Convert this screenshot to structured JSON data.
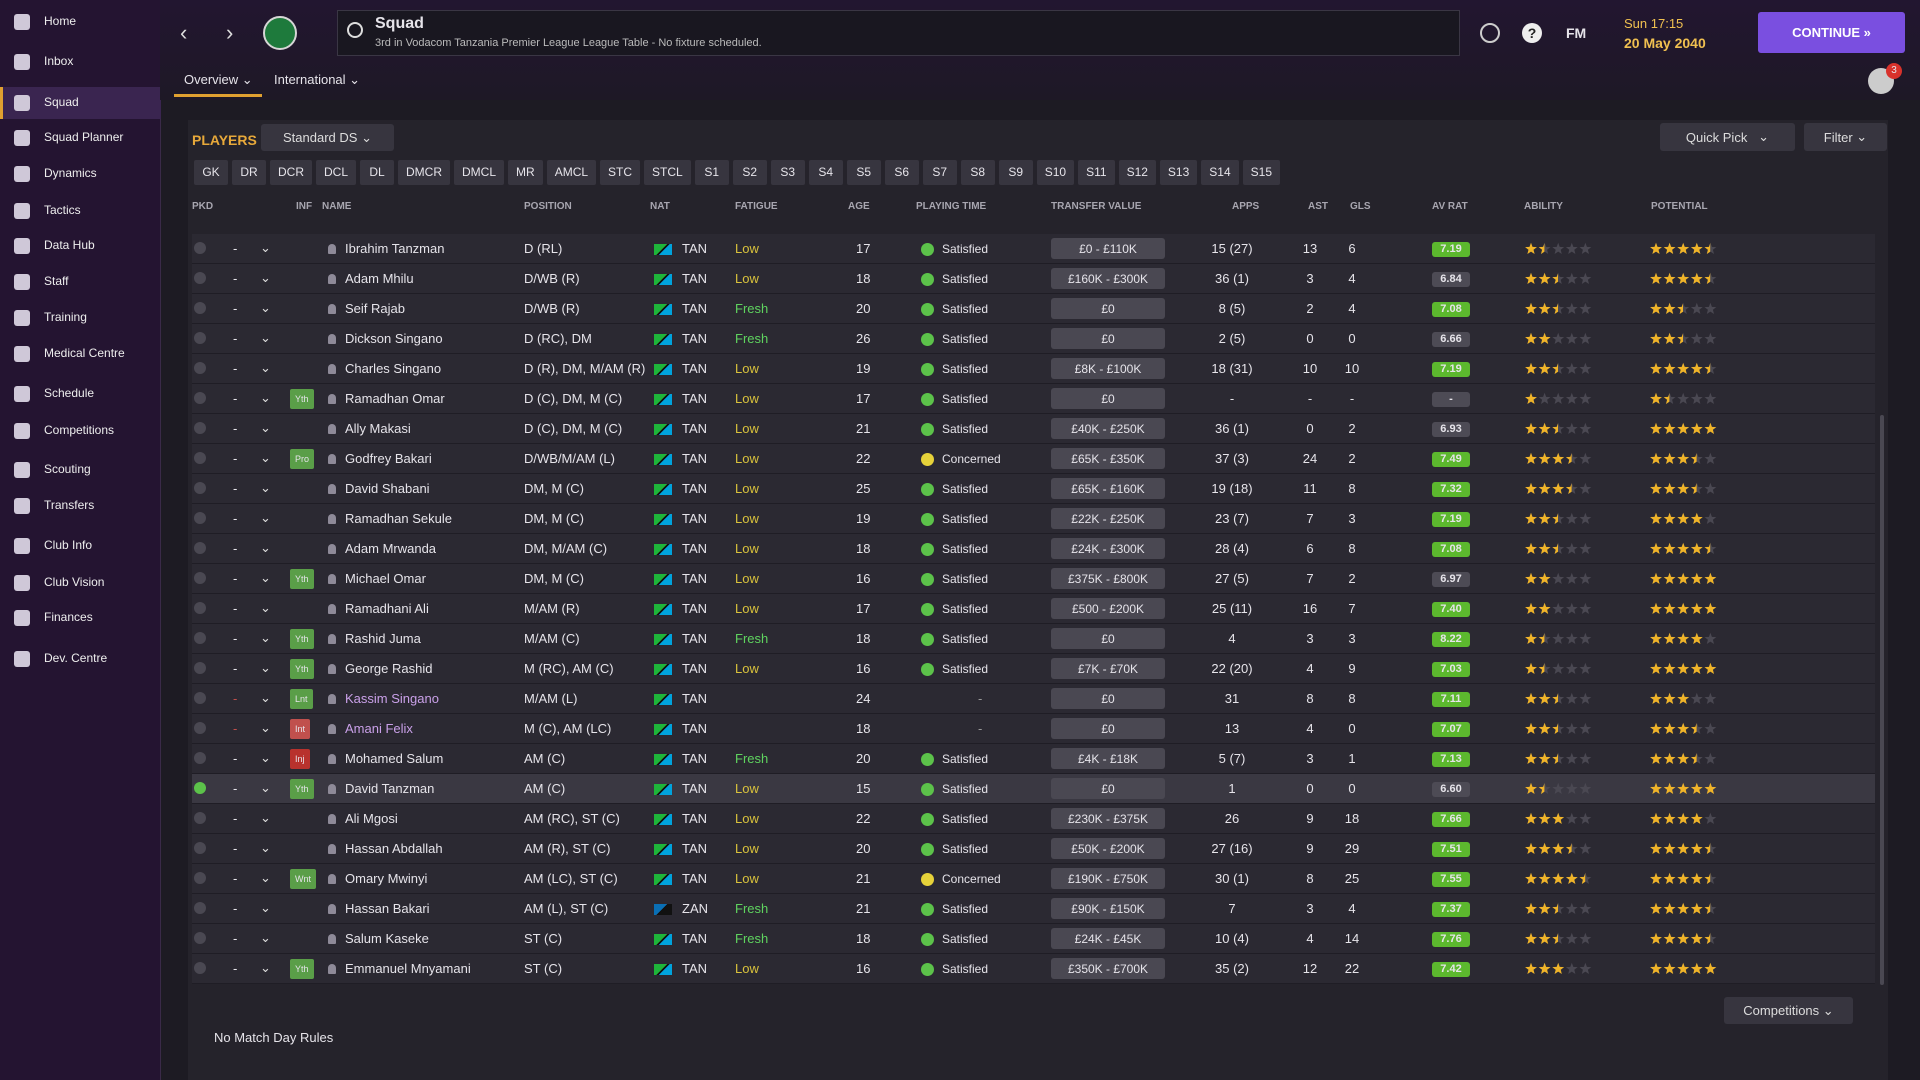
{
  "sidebar": {
    "items": [
      "Home",
      "Inbox",
      "Squad",
      "Squad Planner",
      "Dynamics",
      "Tactics",
      "Data Hub",
      "Staff",
      "Training",
      "Medical Centre",
      "Schedule",
      "Competitions",
      "Scouting",
      "Transfers",
      "Club Info",
      "Club Vision",
      "Finances",
      "Dev. Centre"
    ],
    "active": "Squad"
  },
  "header": {
    "title": "Squad",
    "subtitle": "3rd in Vodacom Tanzania Premier League League Table - No fixture scheduled.",
    "brand": "FM",
    "day_time": "Sun 17:15",
    "date": "20 May 2040",
    "continue": "CONTINUE",
    "notifications": "3"
  },
  "tabs": [
    "Overview",
    "International"
  ],
  "toolbar": {
    "title": "PLAYERS",
    "view": "Standard DS",
    "quick_pick": "Quick Pick",
    "filter": "Filter"
  },
  "position_filters": [
    "GK",
    "DR",
    "DCR",
    "DCL",
    "DL",
    "DMCR",
    "DMCL",
    "MR",
    "AMCL",
    "STC",
    "STCL",
    "S1",
    "S2",
    "S3",
    "S4",
    "S5",
    "S6",
    "S7",
    "S8",
    "S9",
    "S10",
    "S11",
    "S12",
    "S13",
    "S14",
    "S15"
  ],
  "table": {
    "columns": [
      "PKD",
      "INF",
      "NAME",
      "POSITION",
      "NAT",
      "FATIGUE",
      "AGE",
      "PLAYING TIME",
      "TRANSFER VALUE",
      "APPS",
      "AST",
      "GLS",
      "AV RAT",
      "ABILITY",
      "POTENTIAL"
    ],
    "fatigue_colors": {
      "Low": "#d9c23c",
      "Fresh": "#5fd35f"
    },
    "playing_time_colors": {
      "Satisfied": "#5cc24a",
      "Concerned": "#e6d23a"
    },
    "badge_colors": {
      "Yth": "#5a9e48",
      "Pro": "#5a9e48",
      "Lnt": "#5a9e48",
      "Wnt": "#5a9e48",
      "Int": "#c0504d",
      "Inj": "#b8322d"
    },
    "flags": {
      "TAN": [
        "#1eb53a",
        "#00a3dd"
      ],
      "ZAN": [
        "#0a6fb5",
        "#111111"
      ]
    },
    "highlight_row": 18,
    "rows": [
      {
        "pkd": "-",
        "inf": null,
        "name": "Ibrahim Tanzman",
        "position": "D (RL)",
        "nat": "TAN",
        "fatigue": "Low",
        "age": 17,
        "playing_time": "Satisfied",
        "transfer_value": "£0 - £110K",
        "apps": "15 (27)",
        "ast": "13",
        "gls": "6",
        "av_rat": "7.19",
        "ability": 1.5,
        "potential": 4.5
      },
      {
        "pkd": "-",
        "inf": null,
        "name": "Adam Mhilu",
        "position": "D/WB (R)",
        "nat": "TAN",
        "fatigue": "Low",
        "age": 18,
        "playing_time": "Satisfied",
        "transfer_value": "£160K - £300K",
        "apps": "36 (1)",
        "ast": "3",
        "gls": "4",
        "av_rat": "6.84",
        "ability": 2.5,
        "potential": 4.5
      },
      {
        "pkd": "-",
        "inf": null,
        "name": "Seif Rajab",
        "position": "D/WB (R)",
        "nat": "TAN",
        "fatigue": "Fresh",
        "age": 20,
        "playing_time": "Satisfied",
        "transfer_value": "£0",
        "apps": "8 (5)",
        "ast": "2",
        "gls": "4",
        "av_rat": "7.08",
        "ability": 2.5,
        "potential": 2.5
      },
      {
        "pkd": "-",
        "inf": null,
        "name": "Dickson Singano",
        "position": "D (RC), DM",
        "nat": "TAN",
        "fatigue": "Fresh",
        "age": 26,
        "playing_time": "Satisfied",
        "transfer_value": "£0",
        "apps": "2 (5)",
        "ast": "0",
        "gls": "0",
        "av_rat": "6.66",
        "ability": 2,
        "potential": 2.5
      },
      {
        "pkd": "-",
        "inf": null,
        "name": "Charles Singano",
        "position": "D (R), DM, M/AM (R)",
        "nat": "TAN",
        "fatigue": "Low",
        "age": 19,
        "playing_time": "Satisfied",
        "transfer_value": "£8K - £100K",
        "apps": "18 (31)",
        "ast": "10",
        "gls": "10",
        "av_rat": "7.19",
        "ability": 2.5,
        "potential": 4.5
      },
      {
        "pkd": "-",
        "inf": "Yth",
        "name": "Ramadhan Omar",
        "position": "D (C), DM, M (C)",
        "nat": "TAN",
        "fatigue": "Low",
        "age": 17,
        "playing_time": "Satisfied",
        "transfer_value": "£0",
        "apps": "-",
        "ast": "-",
        "gls": "-",
        "av_rat": "-",
        "ability": 1,
        "potential": 1.5
      },
      {
        "pkd": "-",
        "inf": null,
        "name": "Ally Makasi",
        "position": "D (C), DM, M (C)",
        "nat": "TAN",
        "fatigue": "Low",
        "age": 21,
        "playing_time": "Satisfied",
        "transfer_value": "£40K - £250K",
        "apps": "36 (1)",
        "ast": "0",
        "gls": "2",
        "av_rat": "6.93",
        "ability": 2.5,
        "potential": 5
      },
      {
        "pkd": "-",
        "inf": "Pro",
        "name": "Godfrey Bakari",
        "position": "D/WB/M/AM (L)",
        "nat": "TAN",
        "fatigue": "Low",
        "age": 22,
        "playing_time": "Concerned",
        "transfer_value": "£65K - £350K",
        "apps": "37 (3)",
        "ast": "24",
        "gls": "2",
        "av_rat": "7.49",
        "ability": 3.5,
        "potential": 3.5
      },
      {
        "pkd": "-",
        "inf": null,
        "name": "David Shabani",
        "position": "DM, M (C)",
        "nat": "TAN",
        "fatigue": "Low",
        "age": 25,
        "playing_time": "Satisfied",
        "transfer_value": "£65K - £160K",
        "apps": "19 (18)",
        "ast": "11",
        "gls": "8",
        "av_rat": "7.32",
        "ability": 3.5,
        "potential": 3.5
      },
      {
        "pkd": "-",
        "inf": null,
        "name": "Ramadhan Sekule",
        "position": "DM, M (C)",
        "nat": "TAN",
        "fatigue": "Low",
        "age": 19,
        "playing_time": "Satisfied",
        "transfer_value": "£22K - £250K",
        "apps": "23 (7)",
        "ast": "7",
        "gls": "3",
        "av_rat": "7.19",
        "ability": 2.5,
        "potential": 4
      },
      {
        "pkd": "-",
        "inf": null,
        "name": "Adam Mrwanda",
        "position": "DM, M/AM (C)",
        "nat": "TAN",
        "fatigue": "Low",
        "age": 18,
        "playing_time": "Satisfied",
        "transfer_value": "£24K - £300K",
        "apps": "28 (4)",
        "ast": "6",
        "gls": "8",
        "av_rat": "7.08",
        "ability": 2.5,
        "potential": 4.5
      },
      {
        "pkd": "-",
        "inf": "Yth",
        "name": "Michael Omar",
        "position": "DM, M (C)",
        "nat": "TAN",
        "fatigue": "Low",
        "age": 16,
        "playing_time": "Satisfied",
        "transfer_value": "£375K - £800K",
        "apps": "27 (5)",
        "ast": "7",
        "gls": "2",
        "av_rat": "6.97",
        "ability": 2,
        "potential": 5
      },
      {
        "pkd": "-",
        "inf": null,
        "name": "Ramadhani Ali",
        "position": "M/AM (R)",
        "nat": "TAN",
        "fatigue": "Low",
        "age": 17,
        "playing_time": "Satisfied",
        "transfer_value": "£500 - £200K",
        "apps": "25 (11)",
        "ast": "16",
        "gls": "7",
        "av_rat": "7.40",
        "ability": 2,
        "potential": 5
      },
      {
        "pkd": "-",
        "inf": "Yth",
        "name": "Rashid Juma",
        "position": "M/AM (C)",
        "nat": "TAN",
        "fatigue": "Fresh",
        "age": 18,
        "playing_time": "Satisfied",
        "transfer_value": "£0",
        "apps": "4",
        "ast": "3",
        "gls": "3",
        "av_rat": "8.22",
        "ability": 1.5,
        "potential": 4
      },
      {
        "pkd": "-",
        "inf": "Yth",
        "name": "George Rashid",
        "position": "M (RC), AM (C)",
        "nat": "TAN",
        "fatigue": "Low",
        "age": 16,
        "playing_time": "Satisfied",
        "transfer_value": "£7K - £70K",
        "apps": "22 (20)",
        "ast": "4",
        "gls": "9",
        "av_rat": "7.03",
        "ability": 1.5,
        "potential": 5
      },
      {
        "pkd": "-",
        "inf": "Lnt",
        "name": "Kassim Singano",
        "position": "M/AM (L)",
        "nat": "TAN",
        "fatigue": null,
        "age": 24,
        "playing_time": "-",
        "transfer_value": "£0",
        "apps": "31",
        "ast": "8",
        "gls": "8",
        "av_rat": "7.11",
        "ability": 2.5,
        "potential": 3
      },
      {
        "pkd": "-",
        "inf": "Int",
        "name": "Amani Felix",
        "position": "M (C), AM (LC)",
        "nat": "TAN",
        "fatigue": null,
        "age": 18,
        "playing_time": "-",
        "transfer_value": "£0",
        "apps": "13",
        "ast": "4",
        "gls": "0",
        "av_rat": "7.07",
        "ability": 2.5,
        "potential": 3.5
      },
      {
        "pkd": "-",
        "inf": "Inj",
        "name": "Mohamed Salum",
        "position": "AM (C)",
        "nat": "TAN",
        "fatigue": "Fresh",
        "age": 20,
        "playing_time": "Satisfied",
        "transfer_value": "£4K - £18K",
        "apps": "5 (7)",
        "ast": "3",
        "gls": "1",
        "av_rat": "7.13",
        "ability": 2.5,
        "potential": 3.5
      },
      {
        "pkd": "-",
        "inf": "Yth",
        "name": "David Tanzman",
        "position": "AM (C)",
        "nat": "TAN",
        "fatigue": "Low",
        "age": 15,
        "playing_time": "Satisfied",
        "transfer_value": "£0",
        "apps": "1",
        "ast": "0",
        "gls": "0",
        "av_rat": "6.60",
        "ability": 1.5,
        "potential": 5
      },
      {
        "pkd": "-",
        "inf": null,
        "name": "Ali Mgosi",
        "position": "AM (RC), ST (C)",
        "nat": "TAN",
        "fatigue": "Low",
        "age": 22,
        "playing_time": "Satisfied",
        "transfer_value": "£230K - £375K",
        "apps": "26",
        "ast": "9",
        "gls": "18",
        "av_rat": "7.66",
        "ability": 3,
        "potential": 4
      },
      {
        "pkd": "-",
        "inf": null,
        "name": "Hassan Abdallah",
        "position": "AM (R), ST (C)",
        "nat": "TAN",
        "fatigue": "Low",
        "age": 20,
        "playing_time": "Satisfied",
        "transfer_value": "£50K - £200K",
        "apps": "27 (16)",
        "ast": "9",
        "gls": "29",
        "av_rat": "7.51",
        "ability": 3.5,
        "potential": 4.5
      },
      {
        "pkd": "-",
        "inf": "Wnt",
        "name": "Omary Mwinyi",
        "position": "AM (LC), ST (C)",
        "nat": "TAN",
        "fatigue": "Low",
        "age": 21,
        "playing_time": "Concerned",
        "transfer_value": "£190K - £750K",
        "apps": "30 (1)",
        "ast": "8",
        "gls": "25",
        "av_rat": "7.55",
        "ability": 4.5,
        "potential": 4.5
      },
      {
        "pkd": "-",
        "inf": null,
        "name": "Hassan Bakari",
        "position": "AM (L), ST (C)",
        "nat": "ZAN",
        "fatigue": "Fresh",
        "age": 21,
        "playing_time": "Satisfied",
        "transfer_value": "£90K - £150K",
        "apps": "7",
        "ast": "3",
        "gls": "4",
        "av_rat": "7.37",
        "ability": 2.5,
        "potential": 4.5
      },
      {
        "pkd": "-",
        "inf": null,
        "name": "Salum Kaseke",
        "position": "ST (C)",
        "nat": "TAN",
        "fatigue": "Fresh",
        "age": 18,
        "playing_time": "Satisfied",
        "transfer_value": "£24K - £45K",
        "apps": "10 (4)",
        "ast": "4",
        "gls": "14",
        "av_rat": "7.76",
        "ability": 2.5,
        "potential": 4.5
      },
      {
        "pkd": "-",
        "inf": "Yth",
        "name": "Emmanuel Mnyamani",
        "position": "ST (C)",
        "nat": "TAN",
        "fatigue": "Low",
        "age": 16,
        "playing_time": "Satisfied",
        "transfer_value": "£350K - £700K",
        "apps": "35 (2)",
        "ast": "12",
        "gls": "22",
        "av_rat": "7.42",
        "ability": 3,
        "potential": 5
      }
    ]
  },
  "footer": {
    "rules": "No Match Day Rules",
    "competitions": "Competitions"
  }
}
